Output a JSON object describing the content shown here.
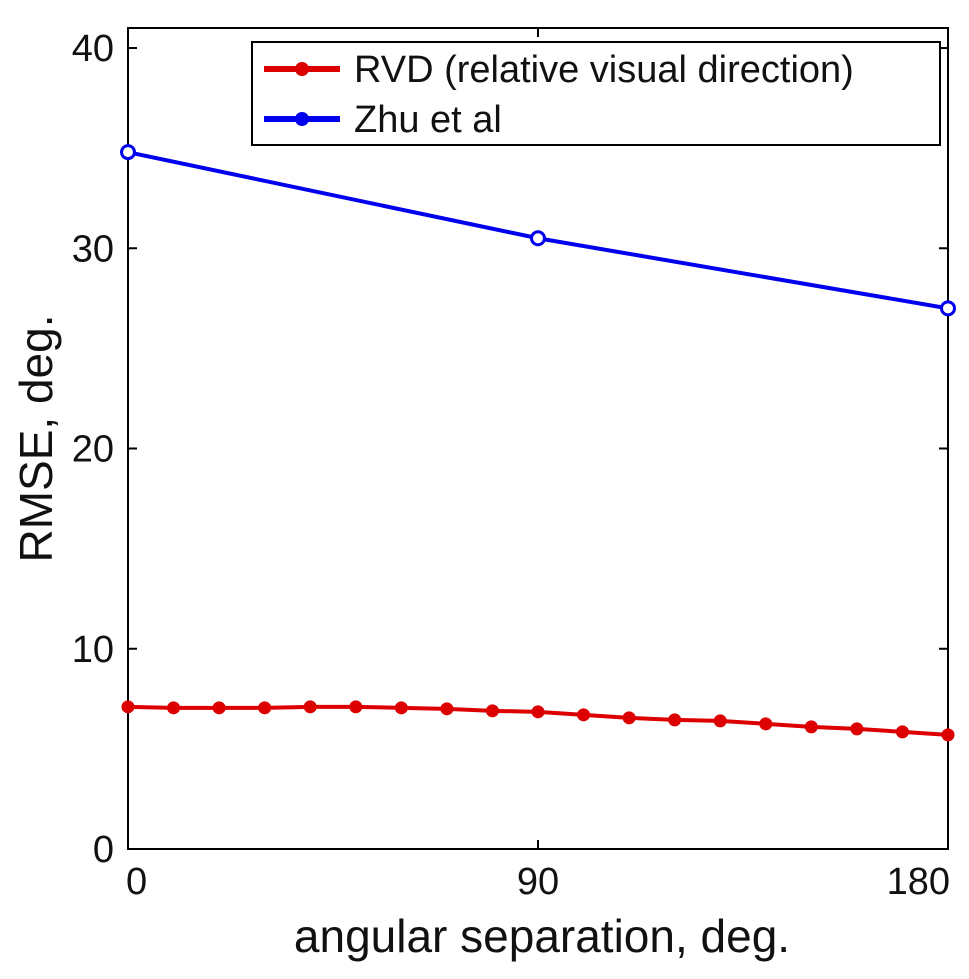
{
  "chart_data": {
    "type": "line",
    "xlabel": "angular separation, deg.",
    "ylabel": "RMSE, deg.",
    "xlim": [
      0,
      180
    ],
    "ylim": [
      0,
      41
    ],
    "xticks": [
      0,
      90,
      180
    ],
    "xtick_labels": [
      "0",
      "90",
      "180"
    ],
    "yticks": [
      0,
      10,
      20,
      30,
      40
    ],
    "ytick_labels": [
      "0",
      "10",
      "20",
      "30",
      "40"
    ],
    "grid": false,
    "legend_position": "top-right",
    "series": [
      {
        "name": "RVD (relative visual direction)",
        "color": "#dd0000",
        "marker": "filled-circle",
        "x": [
          0,
          10,
          20,
          30,
          40,
          50,
          60,
          70,
          80,
          90,
          100,
          110,
          120,
          130,
          140,
          150,
          160,
          170,
          180
        ],
        "y": [
          7.1,
          7.05,
          7.05,
          7.05,
          7.1,
          7.1,
          7.05,
          7.0,
          6.9,
          6.85,
          6.7,
          6.55,
          6.45,
          6.4,
          6.25,
          6.1,
          6.0,
          5.85,
          5.7
        ]
      },
      {
        "name": "Zhu et al",
        "color": "#0000ee",
        "marker": "open-circle",
        "x": [
          0,
          90,
          180
        ],
        "y": [
          34.8,
          30.5,
          27.0
        ]
      }
    ]
  }
}
